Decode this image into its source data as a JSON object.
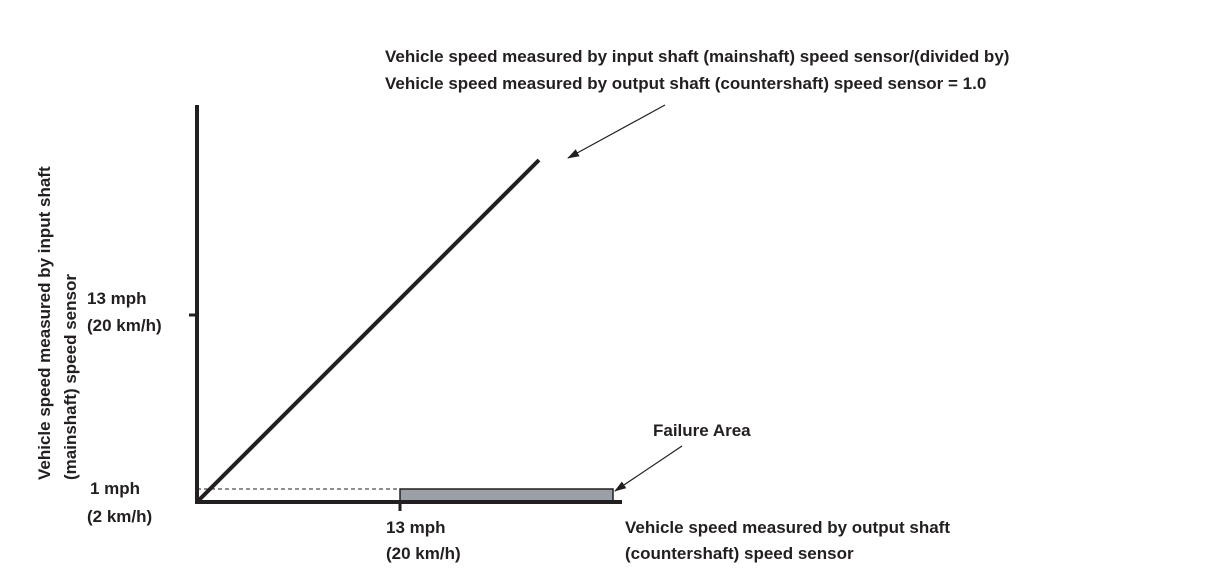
{
  "chart_data": {
    "type": "line",
    "title_lines": [
      "Vehicle speed measured by input shaft (mainshaft) speed sensor/(divided by)",
      "Vehicle speed measured by output shaft (countershaft) speed sensor = 1.0"
    ],
    "xlabel_lines": [
      "Vehicle speed measured by output shaft",
      "(countershaft) speed sensor"
    ],
    "ylabel_lines": [
      "Vehicle speed measured by input shaft",
      "(mainshaft) speed sensor"
    ],
    "x_ticks": [
      {
        "value": 13,
        "line1": "13 mph",
        "line2": "(20 km/h)"
      }
    ],
    "y_ticks": [
      {
        "value": 13,
        "line1": "13 mph",
        "line2": "(20 km/h)"
      },
      {
        "value": 1,
        "line1": "1 mph",
        "line2": "(2 km/h)"
      }
    ],
    "xlim": [
      0,
      28
    ],
    "ylim": [
      0,
      28
    ],
    "series": [
      {
        "name": "ratio = 1.0",
        "x": [
          0,
          25
        ],
        "y": [
          0,
          25
        ]
      }
    ],
    "failure_area": {
      "label": "Failure Area",
      "x": [
        13,
        27.5
      ],
      "y": [
        0,
        1
      ]
    },
    "colors": {
      "line": "#231f20",
      "failure_fill": "#9aa0a6"
    }
  }
}
